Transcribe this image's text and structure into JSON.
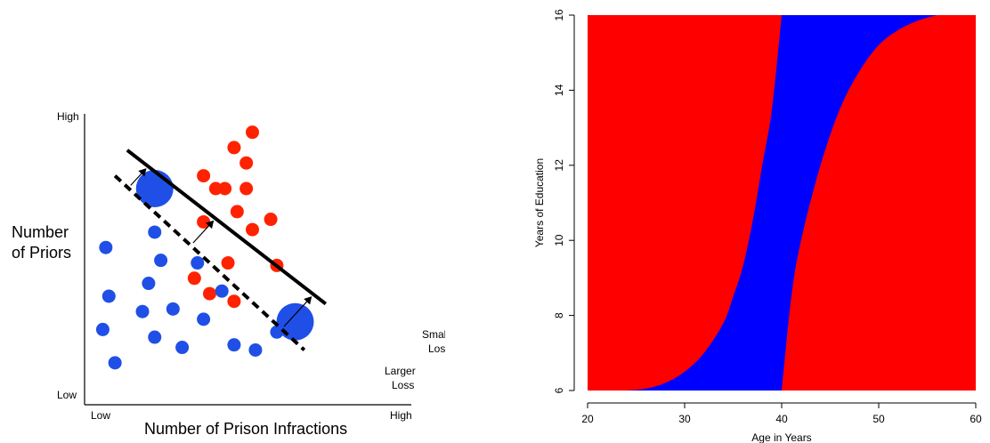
{
  "chart_data": [
    {
      "type": "scatter",
      "title": "",
      "xlabel": "Number of Prison Infractions",
      "ylabel": "Number of Priors",
      "x_tick_labels": [
        "Low",
        "High"
      ],
      "y_tick_labels": [
        "Low",
        "High"
      ],
      "xlim": [
        0,
        100
      ],
      "ylim": [
        0,
        100
      ],
      "grid": false,
      "series": [
        {
          "color": "#ff2200",
          "points": [
            {
              "x": 50,
              "y": 97
            },
            {
              "x": 48,
              "y": 85
            },
            {
              "x": 44,
              "y": 91
            },
            {
              "x": 34,
              "y": 80
            },
            {
              "x": 38,
              "y": 75
            },
            {
              "x": 41,
              "y": 75
            },
            {
              "x": 48,
              "y": 75
            },
            {
              "x": 45,
              "y": 66
            },
            {
              "x": 34,
              "y": 62
            },
            {
              "x": 50,
              "y": 59
            },
            {
              "x": 56,
              "y": 63
            },
            {
              "x": 42,
              "y": 46
            },
            {
              "x": 58,
              "y": 45
            },
            {
              "x": 31,
              "y": 40
            },
            {
              "x": 36,
              "y": 34
            },
            {
              "x": 44,
              "y": 31
            }
          ]
        },
        {
          "color": "#1f4fe6",
          "points": [
            {
              "x": 2,
              "y": 52
            },
            {
              "x": 3,
              "y": 33
            },
            {
              "x": 1,
              "y": 20
            },
            {
              "x": 5,
              "y": 7
            },
            {
              "x": 18,
              "y": 58
            },
            {
              "x": 20,
              "y": 47
            },
            {
              "x": 16,
              "y": 38
            },
            {
              "x": 14,
              "y": 27
            },
            {
              "x": 18,
              "y": 17
            },
            {
              "x": 24,
              "y": 28
            },
            {
              "x": 27,
              "y": 13
            },
            {
              "x": 32,
              "y": 46
            },
            {
              "x": 40,
              "y": 35
            },
            {
              "x": 34,
              "y": 24
            },
            {
              "x": 44,
              "y": 14
            },
            {
              "x": 51,
              "y": 12
            },
            {
              "x": 58,
              "y": 19
            }
          ]
        },
        {
          "color": "#1f4fe6",
          "size": "large",
          "points": [
            {
              "x": 18,
              "y": 75
            },
            {
              "x": 64,
              "y": 23
            }
          ]
        }
      ],
      "lines": [
        {
          "style": "solid",
          "from": [
            9,
            90
          ],
          "to": [
            74,
            30
          ],
          "label": "Smaller Loss"
        },
        {
          "style": "dashed",
          "from": [
            5,
            80
          ],
          "to": [
            67,
            12
          ],
          "label": "Larger Loss"
        }
      ]
    },
    {
      "type": "area",
      "title": "",
      "xlabel": "Age in Years",
      "ylabel": "Years of Education",
      "xlim": [
        20,
        60
      ],
      "ylim": [
        6,
        16
      ],
      "xticks": [
        20,
        30,
        40,
        50,
        60
      ],
      "yticks": [
        6,
        8,
        10,
        12,
        14,
        16
      ],
      "grid": false,
      "colors": {
        "background": "#ff0000",
        "band": "#0000ff"
      },
      "band_left_edge": [
        [
          24.0,
          6.0
        ],
        [
          26.0,
          6.05
        ],
        [
          28.0,
          6.2
        ],
        [
          30.0,
          6.5
        ],
        [
          32.0,
          7.0
        ],
        [
          34.0,
          7.8
        ],
        [
          35.0,
          8.5
        ],
        [
          36.0,
          9.3
        ],
        [
          37.0,
          10.5
        ],
        [
          38.0,
          12.0
        ],
        [
          39.0,
          13.5
        ],
        [
          40.0,
          16.0
        ]
      ],
      "band_right_edge": [
        [
          40.0,
          6.0
        ],
        [
          41.0,
          8.5
        ],
        [
          42.0,
          10.0
        ],
        [
          44.0,
          12.0
        ],
        [
          46.0,
          13.5
        ],
        [
          48.0,
          14.5
        ],
        [
          50.0,
          15.2
        ],
        [
          52.0,
          15.6
        ],
        [
          54.0,
          15.85
        ],
        [
          56.0,
          16.0
        ]
      ]
    }
  ]
}
